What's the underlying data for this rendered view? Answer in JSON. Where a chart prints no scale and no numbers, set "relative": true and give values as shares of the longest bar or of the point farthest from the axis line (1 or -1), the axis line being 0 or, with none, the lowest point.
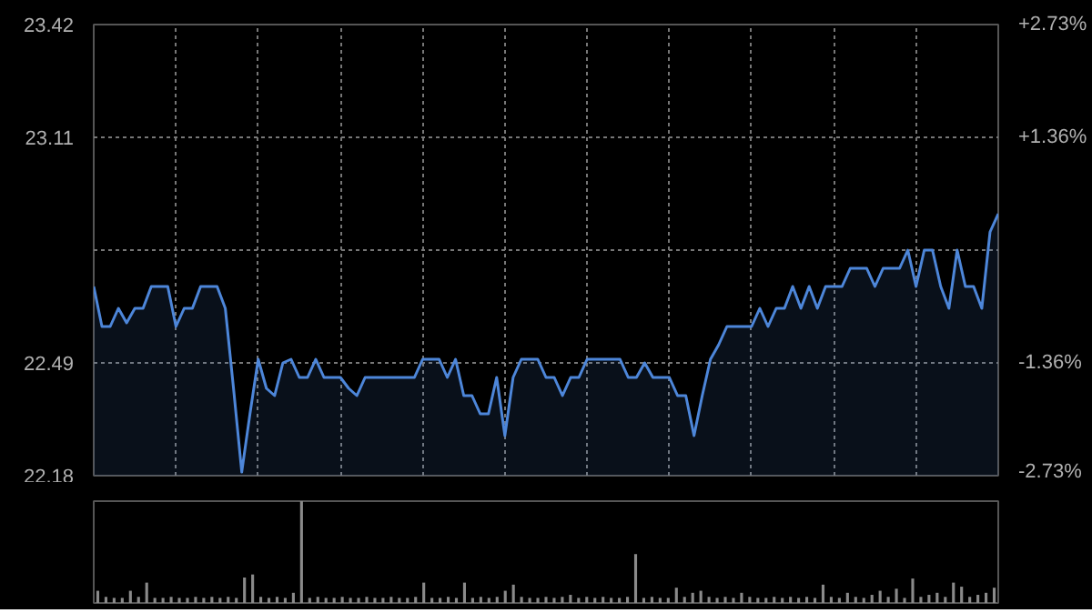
{
  "chart_data": [
    {
      "type": "area",
      "categories": [
        null,
        null,
        null,
        null,
        null,
        null,
        null,
        null,
        null,
        null,
        null,
        null,
        null,
        null,
        null,
        null,
        null,
        null,
        null,
        null,
        null,
        null,
        null,
        null,
        null,
        null,
        null,
        null,
        null,
        null,
        null,
        null,
        null,
        null,
        null,
        null,
        null,
        null,
        null,
        null,
        null,
        null,
        null,
        null,
        null,
        null,
        null,
        null,
        null,
        null,
        null,
        null,
        null,
        null,
        null,
        null,
        null,
        null,
        null,
        null,
        null,
        null,
        null,
        null,
        null,
        null,
        null,
        null,
        null,
        null,
        null,
        null,
        null,
        null,
        null,
        null,
        null,
        null,
        null,
        null,
        null,
        null,
        null,
        null,
        null,
        null,
        null,
        null,
        null,
        null,
        null,
        null,
        null,
        null,
        null,
        null,
        null,
        null,
        null,
        null,
        null,
        null,
        null,
        null,
        null,
        null,
        null,
        null,
        null,
        null,
        null
      ],
      "series": [
        {
          "color": "#4d86d9",
          "values": [
            22.7,
            22.59,
            22.59,
            22.64,
            22.6,
            22.64,
            22.64,
            22.7,
            22.7,
            22.7,
            22.59,
            22.64,
            22.64,
            22.7,
            22.7,
            22.7,
            22.64,
            22.42,
            22.19,
            22.35,
            22.5,
            22.42,
            22.4,
            22.49,
            22.5,
            22.45,
            22.45,
            22.5,
            22.45,
            22.45,
            22.45,
            22.42,
            22.4,
            22.45,
            22.45,
            22.45,
            22.45,
            22.45,
            22.45,
            22.45,
            22.5,
            22.5,
            22.5,
            22.45,
            22.5,
            22.4,
            22.4,
            22.35,
            22.35,
            22.45,
            22.29,
            22.45,
            22.5,
            22.5,
            22.5,
            22.45,
            22.45,
            22.4,
            22.45,
            22.45,
            22.5,
            22.5,
            22.5,
            22.5,
            22.5,
            22.45,
            22.45,
            22.49,
            22.45,
            22.45,
            22.45,
            22.4,
            22.4,
            22.29,
            22.4,
            22.5,
            22.54,
            22.59,
            22.59,
            22.59,
            22.59,
            22.64,
            22.59,
            22.64,
            22.64,
            22.7,
            22.64,
            22.7,
            22.64,
            22.7,
            22.7,
            22.7,
            22.75,
            22.75,
            22.75,
            22.7,
            22.75,
            22.75,
            22.75,
            22.8,
            22.7,
            22.8,
            22.8,
            22.7,
            22.64,
            22.8,
            22.7,
            22.7,
            22.64,
            22.85,
            22.9
          ]
        }
      ],
      "ylim": [
        22.18,
        23.42
      ],
      "yticks": [
        22.18,
        22.49,
        {
          "value": 22.8,
          "label": null
        },
        23.11,
        23.42
      ],
      "y2lim": [
        -2.73,
        2.73
      ],
      "y2ticks": [
        {
          "value": -2.73,
          "label": "-2.73%"
        },
        {
          "value": -1.36,
          "label": "-1.36%"
        },
        {
          "value": 0,
          "label": null
        },
        {
          "value": 1.36,
          "label": "+1.36%"
        },
        {
          "value": 2.73,
          "label": "+2.73%"
        }
      ],
      "grid": true
    },
    {
      "type": "bar",
      "relative": true,
      "categories": [
        null,
        null,
        null,
        null,
        null,
        null,
        null,
        null,
        null,
        null,
        null,
        null,
        null,
        null,
        null,
        null,
        null,
        null,
        null,
        null,
        null,
        null,
        null,
        null,
        null,
        null,
        null,
        null,
        null,
        null,
        null,
        null,
        null,
        null,
        null,
        null,
        null,
        null,
        null,
        null,
        null,
        null,
        null,
        null,
        null,
        null,
        null,
        null,
        null,
        null,
        null,
        null,
        null,
        null,
        null,
        null,
        null,
        null,
        null,
        null,
        null,
        null,
        null,
        null,
        null,
        null,
        null,
        null,
        null,
        null,
        null,
        null,
        null,
        null,
        null,
        null,
        null,
        null,
        null,
        null,
        null,
        null,
        null,
        null,
        null,
        null,
        null,
        null,
        null,
        null,
        null,
        null,
        null,
        null,
        null,
        null,
        null,
        null,
        null,
        null,
        null,
        null,
        null,
        null,
        null,
        null,
        null,
        null,
        null,
        null,
        null
      ],
      "series": [
        {
          "color": "#8a8a8a",
          "values": [
            0.12,
            0.06,
            0.05,
            0.05,
            0.12,
            0.06,
            0.2,
            0.05,
            0.05,
            0.06,
            0.05,
            0.05,
            0.06,
            0.05,
            0.06,
            0.05,
            0.06,
            0.05,
            0.25,
            0.28,
            0.06,
            0.05,
            0.06,
            0.05,
            0.1,
            1.0,
            0.05,
            0.06,
            0.05,
            0.05,
            0.06,
            0.05,
            0.05,
            0.06,
            0.05,
            0.05,
            0.06,
            0.05,
            0.05,
            0.06,
            0.2,
            0.05,
            0.05,
            0.06,
            0.05,
            0.2,
            0.05,
            0.06,
            0.05,
            0.06,
            0.12,
            0.18,
            0.06,
            0.05,
            0.05,
            0.06,
            0.05,
            0.06,
            0.08,
            0.05,
            0.06,
            0.05,
            0.06,
            0.05,
            0.05,
            0.06,
            0.48,
            0.05,
            0.06,
            0.05,
            0.05,
            0.15,
            0.06,
            0.1,
            0.12,
            0.06,
            0.05,
            0.06,
            0.05,
            0.1,
            0.06,
            0.05,
            0.05,
            0.06,
            0.05,
            0.06,
            0.05,
            0.06,
            0.05,
            0.18,
            0.06,
            0.05,
            0.1,
            0.06,
            0.05,
            0.08,
            0.12,
            0.06,
            0.14,
            0.05,
            0.24,
            0.06,
            0.08,
            0.1,
            0.06,
            0.2,
            0.16,
            0.06,
            0.08,
            0.1,
            0.15
          ]
        }
      ]
    }
  ]
}
